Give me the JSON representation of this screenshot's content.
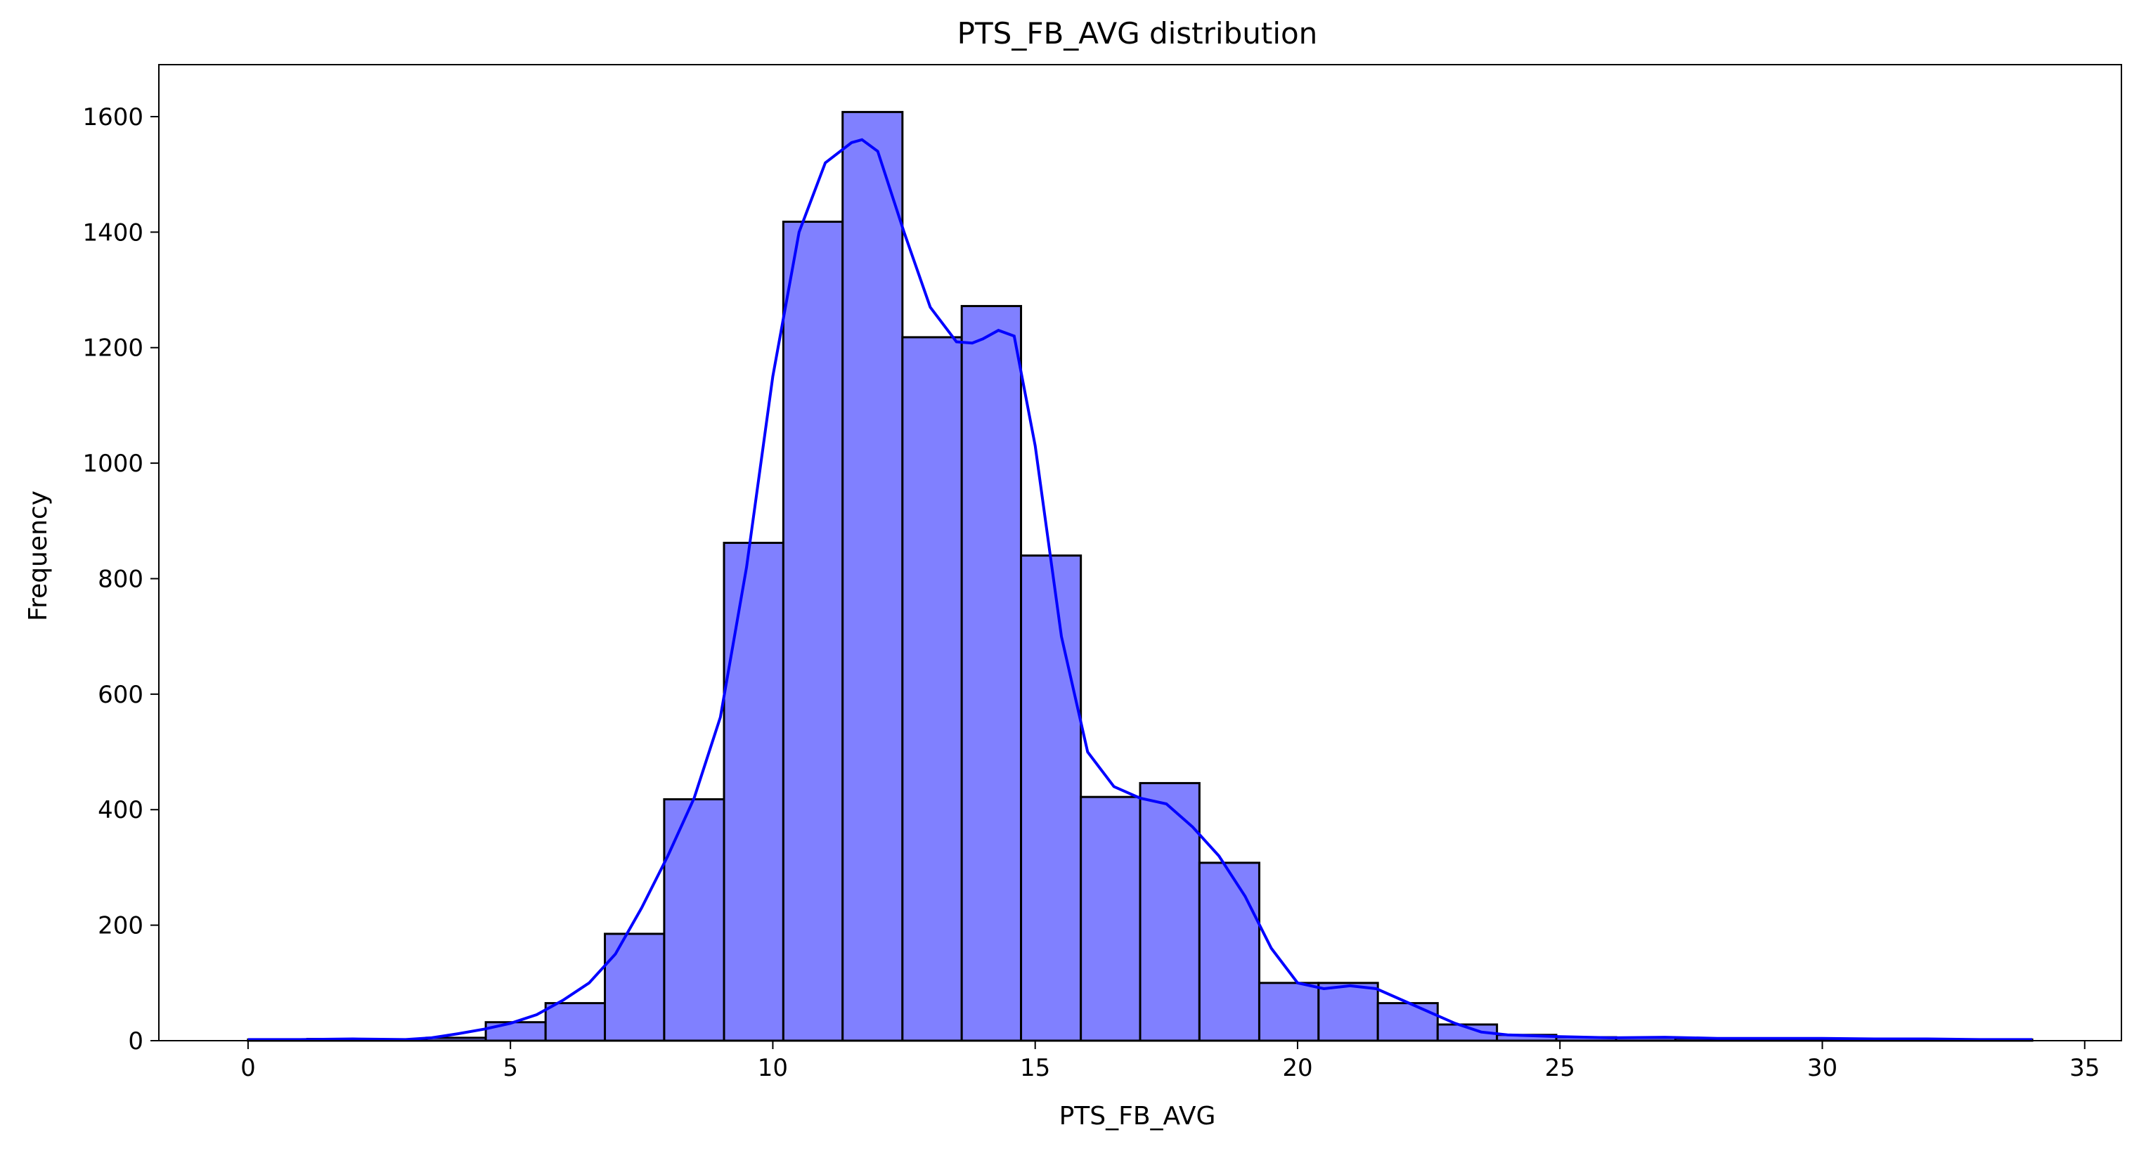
{
  "chart_data": {
    "type": "bar",
    "title": "PTS_FB_AVG distribution",
    "xlabel": "PTS_FB_AVG",
    "ylabel": "Frequency",
    "xlim": [
      -1.7,
      35.7
    ],
    "ylim": [
      0,
      1690
    ],
    "xticks": [
      0,
      5,
      10,
      15,
      20,
      25,
      30,
      35
    ],
    "yticks": [
      0,
      200,
      400,
      600,
      800,
      1000,
      1200,
      1400,
      1600
    ],
    "bar_color": "#8080ff",
    "edge_color": "#000000",
    "kde_color": "#0000ff",
    "grid": false,
    "bins": [
      {
        "x0": 0.0,
        "x1": 1.13,
        "value": 2
      },
      {
        "x0": 1.13,
        "x1": 2.27,
        "value": 3
      },
      {
        "x0": 2.27,
        "x1": 3.4,
        "value": 2
      },
      {
        "x0": 3.4,
        "x1": 4.53,
        "value": 5
      },
      {
        "x0": 4.53,
        "x1": 5.67,
        "value": 32
      },
      {
        "x0": 5.67,
        "x1": 6.8,
        "value": 65
      },
      {
        "x0": 6.8,
        "x1": 7.93,
        "value": 185
      },
      {
        "x0": 7.93,
        "x1": 9.07,
        "value": 418
      },
      {
        "x0": 9.07,
        "x1": 10.2,
        "value": 862
      },
      {
        "x0": 10.2,
        "x1": 11.33,
        "value": 1418
      },
      {
        "x0": 11.33,
        "x1": 12.47,
        "value": 1608
      },
      {
        "x0": 12.47,
        "x1": 13.6,
        "value": 1218
      },
      {
        "x0": 13.6,
        "x1": 14.73,
        "value": 1272
      },
      {
        "x0": 14.73,
        "x1": 15.87,
        "value": 840
      },
      {
        "x0": 15.87,
        "x1": 17.0,
        "value": 422
      },
      {
        "x0": 17.0,
        "x1": 18.13,
        "value": 446
      },
      {
        "x0": 18.13,
        "x1": 19.27,
        "value": 308
      },
      {
        "x0": 19.27,
        "x1": 20.4,
        "value": 100
      },
      {
        "x0": 20.4,
        "x1": 21.53,
        "value": 100
      },
      {
        "x0": 21.53,
        "x1": 22.67,
        "value": 65
      },
      {
        "x0": 22.67,
        "x1": 23.8,
        "value": 28
      },
      {
        "x0": 23.8,
        "x1": 24.93,
        "value": 10
      },
      {
        "x0": 24.93,
        "x1": 26.07,
        "value": 6
      },
      {
        "x0": 26.07,
        "x1": 27.2,
        "value": 5
      },
      {
        "x0": 27.2,
        "x1": 28.33,
        "value": 4
      },
      {
        "x0": 28.33,
        "x1": 29.47,
        "value": 3
      },
      {
        "x0": 29.47,
        "x1": 30.6,
        "value": 3
      },
      {
        "x0": 30.6,
        "x1": 31.73,
        "value": 2
      },
      {
        "x0": 31.73,
        "x1": 32.87,
        "value": 2
      },
      {
        "x0": 32.87,
        "x1": 34.0,
        "value": 2
      }
    ],
    "kde": {
      "x": [
        0,
        1,
        2,
        3,
        3.5,
        4,
        4.5,
        5,
        5.5,
        6,
        6.5,
        7,
        7.5,
        8,
        8.5,
        9,
        9.5,
        10,
        10.5,
        11,
        11.5,
        11.7,
        12,
        12.5,
        13,
        13.5,
        13.8,
        14,
        14.3,
        14.6,
        15,
        15.5,
        16,
        16.5,
        17,
        17.5,
        18,
        18.5,
        19,
        19.5,
        20,
        20.5,
        21,
        21.5,
        22,
        22.5,
        23,
        23.5,
        24,
        25,
        26,
        27,
        28,
        29,
        30,
        31,
        32,
        33,
        34
      ],
      "y": [
        2,
        2,
        3,
        2,
        5,
        12,
        20,
        30,
        45,
        70,
        100,
        150,
        230,
        320,
        420,
        560,
        820,
        1150,
        1400,
        1520,
        1555,
        1560,
        1540,
        1400,
        1270,
        1210,
        1208,
        1215,
        1230,
        1220,
        1030,
        700,
        500,
        440,
        420,
        410,
        370,
        320,
        250,
        160,
        100,
        90,
        95,
        90,
        70,
        50,
        30,
        15,
        10,
        7,
        5,
        6,
        4,
        4,
        4,
        3,
        3,
        2,
        2
      ]
    }
  }
}
